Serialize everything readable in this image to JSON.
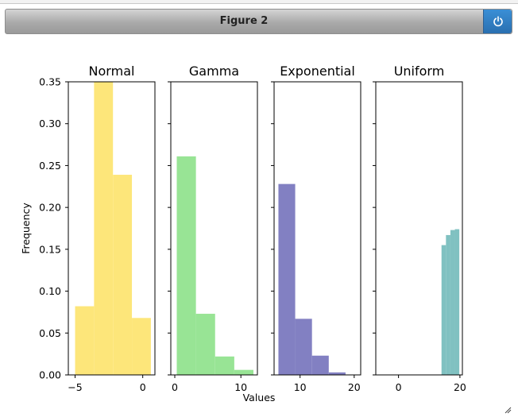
{
  "window": {
    "title": "Figure 2",
    "power_icon": "power-icon"
  },
  "chart_data": {
    "type": "bar",
    "ylabel": "Frequency",
    "xlabel": "Values",
    "ylim": [
      0,
      0.35
    ],
    "y_ticks": [
      0.0,
      0.05,
      0.1,
      0.15,
      0.2,
      0.25,
      0.3,
      0.35
    ],
    "y_tick_labels": [
      "0.00",
      "0.05",
      "0.10",
      "0.15",
      "0.20",
      "0.25",
      "0.30",
      "0.35"
    ],
    "grid": false,
    "panels": [
      {
        "title": "Normal",
        "color": "#fde67a",
        "xlim": [
          -5.5,
          0.9
        ],
        "x_ticks": [
          -5,
          0
        ],
        "x_tick_labels": [
          "−5",
          "0"
        ],
        "bins": [
          {
            "x0": -5.0,
            "x1": -3.6,
            "y": 0.082
          },
          {
            "x0": -3.6,
            "x1": -2.2,
            "y": 0.35
          },
          {
            "x0": -2.2,
            "x1": -0.8,
            "y": 0.239
          },
          {
            "x0": -0.8,
            "x1": 0.6,
            "y": 0.068
          }
        ]
      },
      {
        "title": "Gamma",
        "color": "#98e495",
        "xlim": [
          -0.6,
          12.5
        ],
        "x_ticks": [
          0,
          10
        ],
        "x_tick_labels": [
          "0",
          "10"
        ],
        "bins": [
          {
            "x0": 0.3,
            "x1": 3.2,
            "y": 0.261
          },
          {
            "x0": 3.2,
            "x1": 6.1,
            "y": 0.073
          },
          {
            "x0": 6.1,
            "x1": 9.0,
            "y": 0.022
          },
          {
            "x0": 9.0,
            "x1": 11.9,
            "y": 0.006
          }
        ]
      },
      {
        "title": "Exponential",
        "color": "#8280c2",
        "xlim": [
          5.2,
          21.2
        ],
        "x_ticks": [
          10,
          20
        ],
        "x_tick_labels": [
          "10",
          "20"
        ],
        "bins": [
          {
            "x0": 6.0,
            "x1": 9.1,
            "y": 0.228
          },
          {
            "x0": 9.1,
            "x1": 12.2,
            "y": 0.067
          },
          {
            "x0": 12.2,
            "x1": 15.3,
            "y": 0.023
          },
          {
            "x0": 15.3,
            "x1": 18.4,
            "y": 0.003
          }
        ]
      },
      {
        "title": "Uniform",
        "color": "#80c1c1",
        "xlim": [
          -7.4,
          20.8
        ],
        "x_ticks": [
          0,
          20
        ],
        "x_tick_labels": [
          "0",
          "20"
        ],
        "bins": [
          {
            "x0": 14.0,
            "x1": 15.45,
            "y": 0.155
          },
          {
            "x0": 15.45,
            "x1": 16.9,
            "y": 0.167
          },
          {
            "x0": 16.9,
            "x1": 18.35,
            "y": 0.173
          },
          {
            "x0": 18.35,
            "x1": 19.8,
            "y": 0.174
          }
        ]
      }
    ]
  }
}
